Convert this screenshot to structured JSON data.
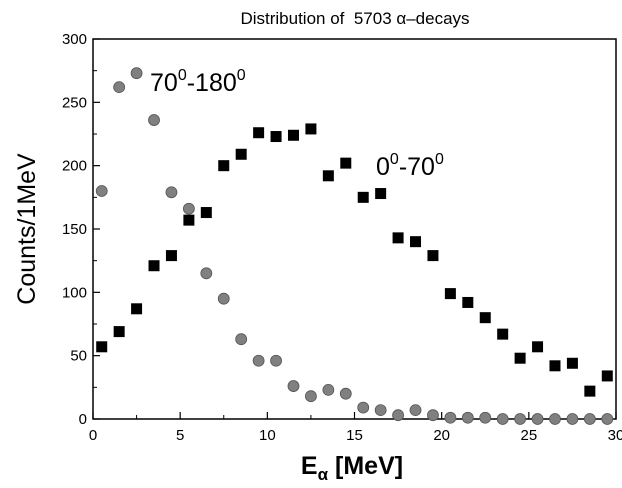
{
  "chart_data": {
    "type": "scatter",
    "title_prefix": "Distribution of  5703 ",
    "title_symbol": "α",
    "title_suffix": "–decays",
    "xlabel_main": "E",
    "xlabel_sub": "α",
    "xlabel_unit": " [MeV]",
    "ylabel": "Counts/1MeV",
    "xlim": [
      0,
      30
    ],
    "ylim": [
      0,
      300
    ],
    "xticks": [
      0,
      5,
      10,
      15,
      20,
      25,
      30
    ],
    "yticks": [
      0,
      50,
      100,
      150,
      200,
      250,
      300
    ],
    "grid": false,
    "series": [
      {
        "marker": "circle",
        "color": "#808080",
        "label_base1": "70",
        "label_sup1": "0",
        "label_base2": "-180",
        "label_sup2": "0",
        "points": [
          [
            0.5,
            180
          ],
          [
            1.5,
            262
          ],
          [
            2.5,
            273
          ],
          [
            3.5,
            236
          ],
          [
            4.5,
            179
          ],
          [
            5.5,
            166
          ],
          [
            6.5,
            115
          ],
          [
            7.5,
            95
          ],
          [
            8.5,
            63
          ],
          [
            9.5,
            46
          ],
          [
            10.5,
            46
          ],
          [
            11.5,
            26
          ],
          [
            12.5,
            18
          ],
          [
            13.5,
            23
          ],
          [
            14.5,
            20
          ],
          [
            15.5,
            9
          ],
          [
            16.5,
            7
          ],
          [
            17.5,
            3
          ],
          [
            18.5,
            7
          ],
          [
            19.5,
            3
          ],
          [
            20.5,
            1
          ],
          [
            21.5,
            1
          ],
          [
            22.5,
            1
          ],
          [
            23.5,
            0
          ],
          [
            24.5,
            0
          ],
          [
            25.5,
            0
          ],
          [
            26.5,
            0
          ],
          [
            27.5,
            0
          ],
          [
            28.5,
            0
          ],
          [
            29.5,
            0
          ]
        ]
      },
      {
        "marker": "square",
        "color": "#000000",
        "label_base1": "0",
        "label_sup1": "0",
        "label_base2": "-70",
        "label_sup2": "0",
        "points": [
          [
            0.5,
            57
          ],
          [
            1.5,
            69
          ],
          [
            2.5,
            87
          ],
          [
            3.5,
            121
          ],
          [
            4.5,
            129
          ],
          [
            5.5,
            157
          ],
          [
            6.5,
            163
          ],
          [
            7.5,
            200
          ],
          [
            8.5,
            209
          ],
          [
            9.5,
            226
          ],
          [
            10.5,
            223
          ],
          [
            11.5,
            224
          ],
          [
            12.5,
            229
          ],
          [
            13.5,
            192
          ],
          [
            14.5,
            202
          ],
          [
            15.5,
            175
          ],
          [
            16.5,
            178
          ],
          [
            17.5,
            143
          ],
          [
            18.5,
            140
          ],
          [
            19.5,
            129
          ],
          [
            20.5,
            99
          ],
          [
            21.5,
            92
          ],
          [
            22.5,
            80
          ],
          [
            23.5,
            67
          ],
          [
            24.5,
            48
          ],
          [
            25.5,
            57
          ],
          [
            26.5,
            42
          ],
          [
            27.5,
            44
          ],
          [
            28.5,
            22
          ],
          [
            29.5,
            34
          ]
        ]
      }
    ]
  }
}
